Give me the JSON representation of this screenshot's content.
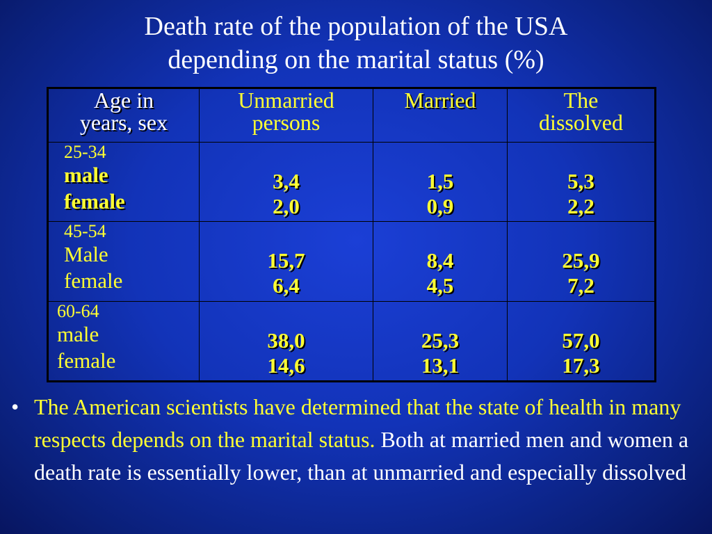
{
  "slide": {
    "title_line1": "Death rate of the population of the USA",
    "title_line2": "depending on the marital status (%)"
  },
  "table": {
    "headers": {
      "age": [
        "Age in",
        "years, sex"
      ],
      "unmarried": [
        "Unmarried",
        "persons"
      ],
      "married": "Married",
      "dissolved": [
        "The",
        "dissolved"
      ]
    },
    "rows": [
      {
        "range": "25-34",
        "sex1": "male",
        "sex2": "female",
        "unmarried": [
          "3,4",
          "2,0"
        ],
        "married": [
          "1,5",
          "0,9"
        ],
        "dissolved": [
          "5,3",
          "2,2"
        ]
      },
      {
        "range": "45-54",
        "sex1": "Male",
        "sex2": "female",
        "unmarried": [
          "15,7",
          "6,4"
        ],
        "married": [
          "8,4",
          "4,5"
        ],
        "dissolved": [
          "25,9",
          "7,2"
        ]
      },
      {
        "range": "60-64",
        "sex1": "male",
        "sex2": "female",
        "unmarried": [
          "38,0",
          "14,6"
        ],
        "married": [
          "25,3",
          "13,1"
        ],
        "dissolved": [
          "57,0",
          "17,3"
        ]
      }
    ]
  },
  "bullet": {
    "marker": "•",
    "highlighted": "The American scientists have determined that the state of health in many respects depends on the marital status.",
    "rest": " Both at married men and women a death rate is essentially lower, than at unmarried and especially dissolved"
  },
  "colors": {
    "highlight": "#ffff33",
    "text": "#ffffff",
    "background": "#1233b8"
  }
}
